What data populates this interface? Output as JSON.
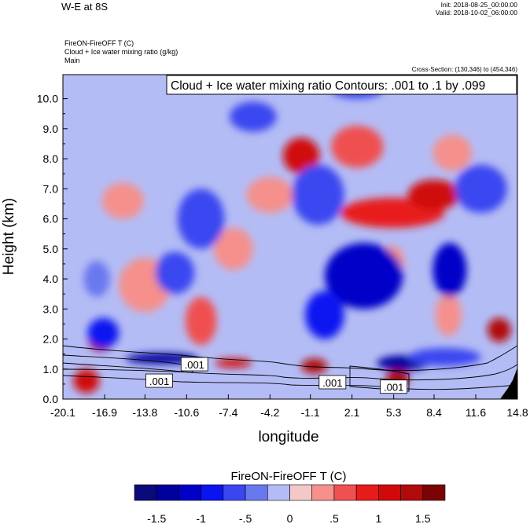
{
  "header": {
    "title": "W-E at 8S",
    "init": "Init: 2018-08-25_00:00:00",
    "valid": "Valid: 2018-10-02_06:00:00",
    "field_line1": "FireON-FireOFF T   (C)",
    "field_line2": "Cloud + Ice water mixing ratio   (g/kg)",
    "field_line3": "Main",
    "cross_section": "Cross-Section: (130,346) to (454,346)"
  },
  "chart_data": {
    "type": "heatmap",
    "title": "W-E at 8S",
    "xlabel": "longitude",
    "ylabel": "Height (km)",
    "x_ticks": [
      "-20.1",
      "-16.9",
      "-13.8",
      "-10.6",
      "-7.4",
      "-4.2",
      "-1.1",
      "2.1",
      "5.3",
      "8.4",
      "11.6",
      "14.8"
    ],
    "x_tick_values": [
      -20.1,
      -16.9,
      -13.8,
      -10.6,
      -7.4,
      -4.2,
      -1.1,
      2.1,
      5.3,
      8.4,
      11.6,
      14.8
    ],
    "y_ticks": [
      "0.0",
      "1.0",
      "2.0",
      "3.0",
      "4.0",
      "5.0",
      "6.0",
      "7.0",
      "8.0",
      "9.0",
      "10.0"
    ],
    "y_tick_values": [
      0,
      1,
      2,
      3,
      4,
      5,
      6,
      7,
      8,
      9,
      10
    ],
    "xlim": [
      -20.1,
      14.8
    ],
    "ylim": [
      0,
      10.8
    ],
    "contour_label": "Cloud + Ice water mixing ratio Contours: .001 to .1 by .099",
    "contour_value_labels": [
      {
        "text": ".001",
        "x": -10.0,
        "y": 1.15
      },
      {
        "text": ".001",
        "x": -12.7,
        "y": 0.6
      },
      {
        "text": ".001",
        "x": 0.6,
        "y": 0.55
      },
      {
        "text": ".001",
        "x": 5.3,
        "y": 0.4
      }
    ],
    "colorbar": {
      "title": "FireON-FireOFF T  (C)",
      "labels": [
        "-1.5",
        "-1",
        "-.5",
        "0",
        ".5",
        "1",
        "1.5"
      ],
      "label_values": [
        -1.5,
        -1,
        -0.5,
        0,
        0.5,
        1,
        1.5
      ],
      "levels": [
        -1.75,
        -1.5,
        -1.25,
        -1,
        -0.75,
        -0.5,
        -0.25,
        0,
        0.25,
        0.5,
        0.75,
        1,
        1.25,
        1.5,
        1.75
      ],
      "colors": [
        "#0a0a7a",
        "#00009e",
        "#0000c8",
        "#0a14f0",
        "#3a46f0",
        "#6a78f0",
        "#b4bcf5",
        "#f5c8c8",
        "#f5908c",
        "#f05050",
        "#e81a1a",
        "#d00a0a",
        "#b00a0a",
        "#7a0404"
      ]
    },
    "features": [
      {
        "kind": "positive",
        "x": -13.8,
        "y": 3.8,
        "rx": 2.0,
        "ry": 0.9,
        "value": 0.35
      },
      {
        "kind": "positive",
        "x": -9.5,
        "y": 2.6,
        "rx": 1.2,
        "ry": 0.8,
        "value": 0.6
      },
      {
        "kind": "positive",
        "x": -17.2,
        "y": 1.9,
        "rx": 0.9,
        "ry": 0.3,
        "value": 1.4
      },
      {
        "kind": "positive",
        "x": -18.3,
        "y": 0.6,
        "rx": 1.0,
        "ry": 0.4,
        "value": 1.2
      },
      {
        "kind": "positive",
        "x": -7.0,
        "y": 1.2,
        "rx": 1.4,
        "ry": 0.15,
        "value": 1.0
      },
      {
        "kind": "positive",
        "x": -0.8,
        "y": 1.1,
        "rx": 1.0,
        "ry": 0.25,
        "value": 1.3
      },
      {
        "kind": "positive",
        "x": 5.6,
        "y": 0.7,
        "rx": 0.9,
        "ry": 0.3,
        "value": 1.3
      },
      {
        "kind": "positive",
        "x": 13.4,
        "y": 2.3,
        "rx": 0.9,
        "ry": 0.4,
        "value": 1.3
      },
      {
        "kind": "positive",
        "x": -1.8,
        "y": 8.1,
        "rx": 1.4,
        "ry": 0.6,
        "value": 1.0
      },
      {
        "kind": "positive",
        "x": 2.5,
        "y": 8.4,
        "rx": 2.0,
        "ry": 0.7,
        "value": 0.5
      },
      {
        "kind": "positive",
        "x": 5.2,
        "y": 6.2,
        "rx": 4.0,
        "ry": 0.5,
        "value": 0.9
      },
      {
        "kind": "positive",
        "x": 8.4,
        "y": 6.8,
        "rx": 2.0,
        "ry": 0.5,
        "value": 1.0
      },
      {
        "kind": "positive",
        "x": -4.2,
        "y": 6.8,
        "rx": 1.8,
        "ry": 0.6,
        "value": 0.4
      },
      {
        "kind": "positive",
        "x": 9.8,
        "y": 8.2,
        "rx": 1.5,
        "ry": 0.6,
        "value": 0.4
      },
      {
        "kind": "positive",
        "x": -15.5,
        "y": 6.6,
        "rx": 1.6,
        "ry": 0.6,
        "value": 0.35
      },
      {
        "kind": "positive",
        "x": -7.0,
        "y": 5.0,
        "rx": 1.5,
        "ry": 0.7,
        "value": 0.4
      },
      {
        "kind": "positive",
        "x": 5.2,
        "y": 4.6,
        "rx": 0.9,
        "ry": 0.5,
        "value": 0.4
      },
      {
        "kind": "positive",
        "x": 9.5,
        "y": 2.8,
        "rx": 1.0,
        "ry": 0.7,
        "value": 0.35
      },
      {
        "kind": "negative",
        "x": 3.0,
        "y": 4.1,
        "rx": 3.0,
        "ry": 1.1,
        "value": -1.2
      },
      {
        "kind": "negative",
        "x": 9.6,
        "y": 4.3,
        "rx": 1.3,
        "ry": 0.9,
        "value": -1.2
      },
      {
        "kind": "negative",
        "x": 0.0,
        "y": 2.8,
        "rx": 1.5,
        "ry": 0.8,
        "value": -0.8
      },
      {
        "kind": "negative",
        "x": -12.5,
        "y": 1.35,
        "rx": 2.8,
        "ry": 0.18,
        "value": -1.5
      },
      {
        "kind": "negative",
        "x": 6.0,
        "y": 1.2,
        "rx": 2.0,
        "ry": 0.25,
        "value": -1.4
      },
      {
        "kind": "negative",
        "x": 9.2,
        "y": 1.4,
        "rx": 2.8,
        "ry": 0.3,
        "value": -0.7
      },
      {
        "kind": "negative",
        "x": -17.0,
        "y": 2.2,
        "rx": 1.2,
        "ry": 0.5,
        "value": -1.0
      },
      {
        "kind": "negative",
        "x": -9.5,
        "y": 6.0,
        "rx": 1.8,
        "ry": 1.0,
        "value": -0.7
      },
      {
        "kind": "negative",
        "x": -0.5,
        "y": 6.8,
        "rx": 2.0,
        "ry": 1.0,
        "value": -0.75
      },
      {
        "kind": "negative",
        "x": -5.5,
        "y": 9.4,
        "rx": 1.8,
        "ry": 0.5,
        "value": -0.7
      },
      {
        "kind": "negative",
        "x": 2.5,
        "y": 10.3,
        "rx": 2.0,
        "ry": 0.3,
        "value": -0.6
      },
      {
        "kind": "negative",
        "x": -11.5,
        "y": 4.2,
        "rx": 1.5,
        "ry": 0.7,
        "value": -0.55
      },
      {
        "kind": "negative",
        "x": -17.5,
        "y": 4.0,
        "rx": 1.0,
        "ry": 0.6,
        "value": -0.5
      },
      {
        "kind": "negative",
        "x": 12.0,
        "y": 7.0,
        "rx": 2.0,
        "ry": 0.8,
        "value": -0.55
      }
    ]
  }
}
